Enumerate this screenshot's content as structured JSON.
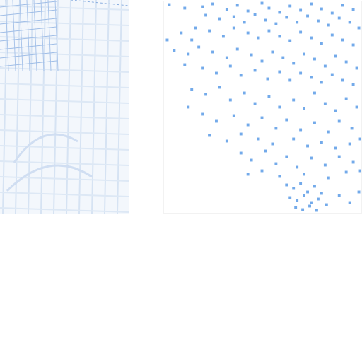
{
  "chart_data": {
    "type": "scatter",
    "marker": "square",
    "color": "#5b9be6",
    "xlim": [
      0,
      282
    ],
    "ylim": [
      0,
      300
    ],
    "xticks": [],
    "yticks": [],
    "tick_labels": false,
    "x": [
      8,
      30,
      55,
      70,
      90,
      105,
      120,
      140,
      150,
      165,
      180,
      195,
      210,
      225,
      240,
      255,
      270,
      60,
      80,
      100,
      115,
      130,
      145,
      160,
      175,
      190,
      205,
      220,
      235,
      250,
      265,
      278,
      25,
      45,
      40,
      65,
      85,
      100,
      120,
      135,
      150,
      165,
      180,
      195,
      210,
      225,
      240,
      255,
      270,
      5,
      15,
      35,
      50,
      70,
      90,
      105,
      125,
      140,
      155,
      170,
      185,
      200,
      215,
      230,
      245,
      260,
      275,
      30,
      55,
      75,
      95,
      110,
      130,
      148,
      165,
      180,
      195,
      210,
      225,
      240,
      255,
      270,
      40,
      60,
      80,
      95,
      115,
      130,
      150,
      165,
      185,
      200,
      215,
      230,
      245,
      260,
      275,
      35,
      55,
      75,
      100,
      120,
      140,
      160,
      175,
      195,
      215,
      235,
      250,
      268,
      280,
      65,
      90,
      110,
      135,
      155,
      185,
      205,
      225,
      245,
      265,
      110,
      125,
      145,
      160,
      175,
      190,
      210,
      230,
      250,
      270,
      120,
      140,
      165,
      200,
      235,
      260,
      280,
      175,
      185,
      195,
      205,
      215,
      225,
      180,
      190,
      200,
      210,
      220,
      232,
      188,
      198,
      208,
      218,
      250,
      265,
      278
    ],
    "values": [
      295,
      290,
      292,
      296,
      288,
      294,
      286,
      297,
      290,
      284,
      293,
      287,
      296,
      289,
      283,
      294,
      288,
      280,
      275,
      278,
      270,
      281,
      273,
      268,
      277,
      270,
      279,
      272,
      266,
      276,
      270,
      262,
      255,
      262,
      245,
      258,
      250,
      262,
      255,
      248,
      258,
      250,
      244,
      256,
      248,
      240,
      252,
      245,
      238,
      245,
      230,
      225,
      235,
      228,
      220,
      232,
      224,
      215,
      228,
      220,
      212,
      225,
      218,
      208,
      222,
      214,
      205,
      210,
      205,
      198,
      208,
      195,
      202,
      190,
      200,
      188,
      198,
      192,
      185,
      196,
      188,
      182,
      175,
      168,
      178,
      160,
      170,
      155,
      165,
      150,
      160,
      148,
      170,
      155,
      145,
      162,
      150,
      150,
      140,
      130,
      138,
      125,
      135,
      120,
      132,
      118,
      128,
      115,
      130,
      120,
      105,
      110,
      102,
      112,
      105,
      98,
      105,
      95,
      100,
      92,
      98,
      85,
      75,
      88,
      70,
      80,
      65,
      78,
      68,
      80,
      72,
      55,
      60,
      52,
      55,
      50,
      58,
      60,
      40,
      35,
      42,
      30,
      38,
      28,
      22,
      18,
      25,
      15,
      20,
      12,
      8,
      5,
      10,
      4,
      25,
      15,
      30
    ]
  }
}
